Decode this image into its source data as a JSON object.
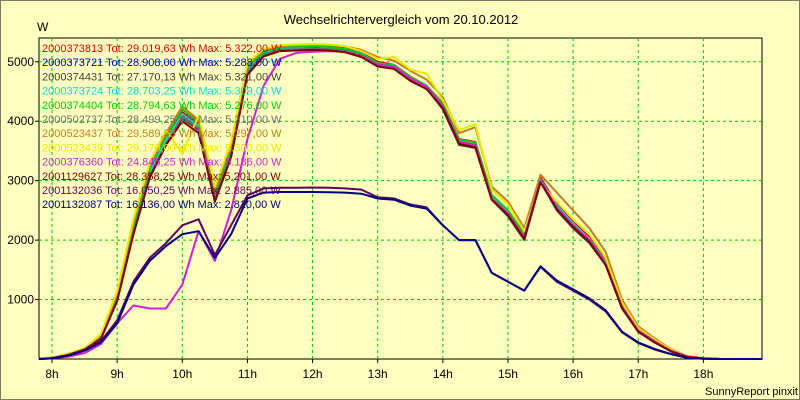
{
  "chart_data": {
    "type": "line",
    "title": "Wechselrichtervergleich vom 20.10.2012",
    "ylabel": "W",
    "footer": "SunnyReport pinxit",
    "xlim": [
      7.8,
      18.9
    ],
    "ylim": [
      0,
      5400
    ],
    "grid": true,
    "legend_position": "top-left",
    "x_ticks": [
      {
        "label": "8h",
        "v": 8
      },
      {
        "label": "9h",
        "v": 9
      },
      {
        "label": "10h",
        "v": 10
      },
      {
        "label": "11h",
        "v": 11
      },
      {
        "label": "12h",
        "v": 12
      },
      {
        "label": "13h",
        "v": 13
      },
      {
        "label": "14h",
        "v": 14
      },
      {
        "label": "15h",
        "v": 15
      },
      {
        "label": "16h",
        "v": 16
      },
      {
        "label": "17h",
        "v": 17
      },
      {
        "label": "18h",
        "v": 18
      }
    ],
    "y_ticks": [
      {
        "label": "1000",
        "v": 1000
      },
      {
        "label": "2000",
        "v": 2000
      },
      {
        "label": "3000",
        "v": 3000
      },
      {
        "label": "4000",
        "v": 4000
      },
      {
        "label": "5000",
        "v": 5000
      }
    ],
    "x": [
      7.8,
      8.0,
      8.25,
      8.5,
      8.75,
      9.0,
      9.25,
      9.5,
      9.75,
      10.0,
      10.25,
      10.5,
      10.75,
      11.0,
      11.25,
      11.5,
      11.75,
      12.0,
      12.25,
      12.5,
      12.75,
      13.0,
      13.25,
      13.5,
      13.75,
      14.0,
      14.25,
      14.5,
      14.75,
      15.0,
      15.25,
      15.5,
      15.75,
      16.0,
      16.25,
      16.5,
      16.75,
      17.0,
      17.25,
      17.5,
      17.75,
      18.0,
      18.25,
      18.5,
      18.9
    ],
    "series": [
      {
        "legend": "2000373813 Tot: 29.019,63 Wh Max: 5.322,00 W",
        "color": "#e00000",
        "values": [
          0,
          20,
          80,
          170,
          380,
          1050,
          2200,
          3150,
          3700,
          4150,
          3950,
          2750,
          3500,
          4900,
          5180,
          5250,
          5260,
          5270,
          5255,
          5230,
          5150,
          5000,
          4950,
          4750,
          4600,
          4300,
          3700,
          3650,
          2750,
          2500,
          2100,
          3050,
          2600,
          2300,
          2050,
          1650,
          900,
          500,
          320,
          150,
          40,
          10,
          0,
          0,
          0
        ]
      },
      {
        "legend": "2000373721 Tot: 28.908,00 Wh Max: 5.288,00 W",
        "color": "#0000c0",
        "values": [
          0,
          15,
          70,
          160,
          350,
          1000,
          2150,
          3100,
          3650,
          4100,
          3900,
          2700,
          3450,
          4850,
          5150,
          5220,
          5230,
          5250,
          5240,
          5210,
          5120,
          4950,
          4920,
          4720,
          4580,
          4250,
          3650,
          3600,
          2700,
          2450,
          2050,
          3000,
          2550,
          2250,
          2000,
          1600,
          880,
          480,
          300,
          140,
          40,
          10,
          0,
          0,
          0
        ]
      },
      {
        "legend": "2000374431 Tot: 27.170,13 Wh Max: 5.321,00 W",
        "color": "#404040",
        "values": [
          0,
          15,
          70,
          160,
          340,
          980,
          2100,
          3050,
          3600,
          4050,
          3850,
          2650,
          3400,
          4800,
          5100,
          5200,
          5220,
          5240,
          5230,
          5200,
          5100,
          4950,
          4900,
          4700,
          4550,
          4200,
          3600,
          3550,
          2680,
          2400,
          2000,
          2980,
          2500,
          2200,
          1950,
          1580,
          850,
          460,
          280,
          130,
          35,
          10,
          0,
          0,
          0
        ]
      },
      {
        "legend": "2000373724 Tot: 28.703,25 Wh Max: 5.309,00 W",
        "color": "#00e0e0",
        "values": [
          0,
          15,
          75,
          165,
          360,
          1020,
          2180,
          3120,
          3680,
          4120,
          3920,
          2720,
          3480,
          4880,
          5160,
          5230,
          5240,
          5260,
          5245,
          5220,
          5140,
          4980,
          4940,
          4740,
          4600,
          4280,
          3680,
          3620,
          2730,
          2480,
          2080,
          3020,
          2580,
          2280,
          2020,
          1620,
          890,
          490,
          310,
          150,
          40,
          10,
          0,
          0,
          0
        ]
      },
      {
        "legend": "2000374404 Tot: 28.794,63 Wh Max: 5.276,00 W",
        "color": "#00d000",
        "values": [
          0,
          20,
          85,
          175,
          390,
          1060,
          2250,
          3200,
          3750,
          4200,
          3980,
          2780,
          3520,
          4900,
          5170,
          5240,
          5250,
          5260,
          5245,
          5220,
          5130,
          4980,
          4930,
          4740,
          4590,
          4290,
          3690,
          3640,
          2760,
          2500,
          2100,
          3000,
          2550,
          2250,
          2000,
          1600,
          890,
          490,
          310,
          150,
          40,
          10,
          0,
          0,
          0
        ]
      },
      {
        "legend": "2000502737 Tot: 28.499,25 Wh Max: 5.210,00 W",
        "color": "#707070",
        "values": [
          0,
          15,
          70,
          160,
          350,
          990,
          2120,
          3080,
          3620,
          4080,
          3880,
          2700,
          3440,
          4840,
          5120,
          5200,
          5210,
          5220,
          5210,
          5180,
          5100,
          4940,
          4900,
          4700,
          4560,
          4240,
          3640,
          3580,
          2700,
          2440,
          2040,
          2990,
          2540,
          2240,
          1990,
          1600,
          870,
          470,
          290,
          140,
          35,
          10,
          0,
          0,
          0
        ]
      },
      {
        "legend": "2000523437 Tot: 29.589,38 Wh Max: 5.297,00 W",
        "color": "#c08020",
        "values": [
          0,
          20,
          85,
          175,
          400,
          1100,
          2300,
          3250,
          3800,
          4250,
          4020,
          2850,
          3600,
          4950,
          5200,
          5260,
          5280,
          5290,
          5280,
          5260,
          5200,
          5080,
          5020,
          4850,
          4700,
          4400,
          3800,
          3900,
          2900,
          2650,
          2200,
          3100,
          2800,
          2500,
          2200,
          1800,
          1000,
          550,
          350,
          170,
          50,
          15,
          0,
          0,
          0
        ]
      },
      {
        "legend": "2000523439 Tot: 29.170,00 Wh Max: 5.300,00 W",
        "color": "#e8e800",
        "values": [
          0,
          20,
          90,
          180,
          420,
          1150,
          2350,
          3300,
          3850,
          3450,
          4100,
          2900,
          3650,
          4980,
          5220,
          5280,
          5290,
          5300,
          5290,
          5260,
          5180,
          5050,
          5080,
          4870,
          4800,
          4350,
          3850,
          3950,
          2850,
          2600,
          2150,
          2950,
          2650,
          2350,
          2100,
          1700,
          950,
          520,
          330,
          160,
          45,
          10,
          0,
          0,
          0
        ]
      },
      {
        "legend": "2000376360 Tot: 24.845,25 Wh Max: 5.186,00 W",
        "color": "#d020d0",
        "values": [
          0,
          10,
          40,
          100,
          250,
          600,
          900,
          850,
          850,
          1250,
          2150,
          1650,
          2500,
          3700,
          4600,
          5050,
          5150,
          5170,
          5180,
          5170,
          5100,
          4950,
          4920,
          4720,
          4580,
          4250,
          3650,
          3600,
          2700,
          2450,
          2050,
          3000,
          2550,
          2250,
          2000,
          1600,
          880,
          480,
          300,
          140,
          40,
          10,
          0,
          0,
          0
        ]
      },
      {
        "legend": "2001129627 Tot: 28.358,25 Wh Max: 5.201,00 W",
        "color": "#800000",
        "values": [
          0,
          15,
          70,
          160,
          340,
          980,
          2100,
          3050,
          3600,
          4000,
          3800,
          2650,
          3400,
          4780,
          5090,
          5180,
          5190,
          5200,
          5190,
          5160,
          5080,
          4920,
          4880,
          4680,
          4540,
          4220,
          3620,
          3560,
          2680,
          2420,
          2020,
          2970,
          2520,
          2220,
          1970,
          1580,
          860,
          460,
          280,
          130,
          35,
          10,
          0,
          0,
          0
        ]
      },
      {
        "legend": "2001132036 Tot: 16.050,25 Wh Max: 2.885,00 W",
        "color": "#600060",
        "values": [
          0,
          10,
          60,
          150,
          300,
          650,
          1300,
          1700,
          1950,
          2250,
          2350,
          1750,
          2250,
          2750,
          2870,
          2880,
          2880,
          2885,
          2880,
          2870,
          2850,
          2720,
          2700,
          2600,
          2550,
          2250,
          2000,
          2000,
          1450,
          1300,
          1150,
          1550,
          1300,
          1150,
          1000,
          800,
          450,
          270,
          160,
          80,
          20,
          5,
          0,
          0,
          0
        ]
      },
      {
        "legend": "2001132087 Tot: 16.136,00 Wh Max: 2.810,00 W",
        "color": "#000080",
        "values": [
          0,
          10,
          55,
          140,
          280,
          600,
          1250,
          1650,
          1900,
          2100,
          2150,
          1700,
          2100,
          2700,
          2800,
          2810,
          2810,
          2810,
          2805,
          2800,
          2780,
          2700,
          2680,
          2580,
          2530,
          2250,
          2000,
          2000,
          1450,
          1300,
          1150,
          1560,
          1320,
          1170,
          1020,
          820,
          460,
          280,
          170,
          85,
          20,
          5,
          0,
          0,
          0
        ]
      }
    ]
  }
}
